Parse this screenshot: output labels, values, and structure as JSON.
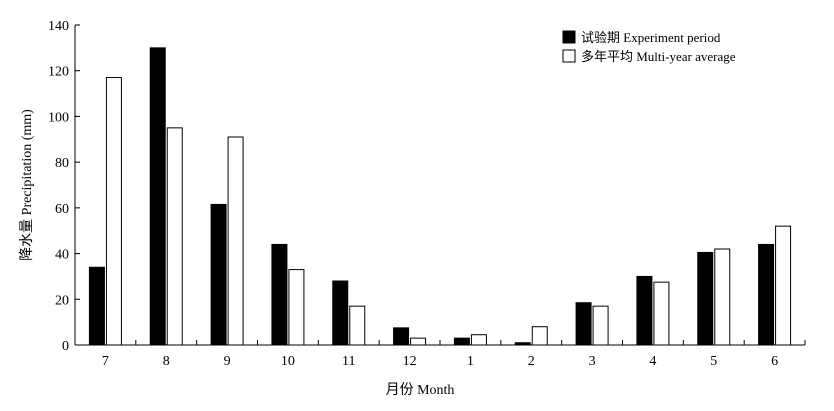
{
  "chart_data": {
    "type": "bar",
    "title": "",
    "xlabel": "月份 Month",
    "ylabel": "降水量 Precipitation (mm)",
    "ylim": [
      0,
      140
    ],
    "yticks": [
      0,
      20,
      40,
      60,
      80,
      100,
      120,
      140
    ],
    "grid": false,
    "legend_position": "top-right",
    "categories": [
      "7",
      "8",
      "9",
      "10",
      "11",
      "12",
      "1",
      "2",
      "3",
      "4",
      "5",
      "6"
    ],
    "series": [
      {
        "name": "试验期 Experiment period",
        "color": "#000000",
        "values": [
          34,
          130,
          61.5,
          44,
          28,
          7.5,
          3,
          1,
          18.5,
          30,
          40.5,
          44
        ]
      },
      {
        "name": "多年平均 Multi-year average",
        "color": "#ffffff",
        "values": [
          117,
          95,
          91,
          33,
          17,
          3,
          4.5,
          8,
          17,
          27.5,
          42,
          52
        ]
      }
    ]
  }
}
